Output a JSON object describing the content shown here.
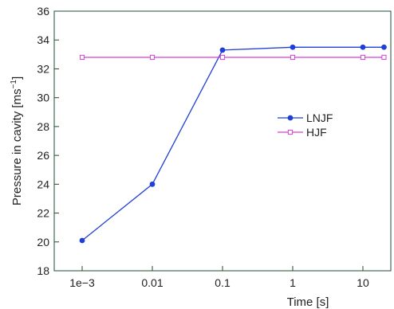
{
  "chart_data": {
    "type": "line",
    "x_scale": "log",
    "x": [
      0.001,
      0.01,
      0.1,
      1,
      10,
      20
    ],
    "xticks": [
      {
        "value": 0.001,
        "label": "1e−3"
      },
      {
        "value": 0.01,
        "label": "0.01"
      },
      {
        "value": 0.1,
        "label": "0.1"
      },
      {
        "value": 1,
        "label": "1"
      },
      {
        "value": 10,
        "label": "10"
      }
    ],
    "xlim": [
      0.0004,
      25
    ],
    "ylim": [
      18,
      36
    ],
    "yticks": [
      18,
      20,
      22,
      24,
      26,
      28,
      30,
      32,
      34,
      36
    ],
    "xlabel": "Time [s]",
    "ylabel_main": "Pressure in cavity [ms",
    "ylabel_sup": "−1",
    "ylabel_end": "]",
    "grid": false,
    "legend_position": "right-middle",
    "series": [
      {
        "name": "LNJF",
        "color": "#1f3fd6",
        "marker": "filled-circle",
        "values": [
          20.1,
          24.0,
          33.3,
          33.5,
          33.5,
          33.5
        ]
      },
      {
        "name": "HJF",
        "color": "#d63fd6",
        "marker": "open-square",
        "values": [
          32.8,
          32.8,
          32.8,
          32.8,
          32.8,
          32.8
        ]
      }
    ]
  }
}
